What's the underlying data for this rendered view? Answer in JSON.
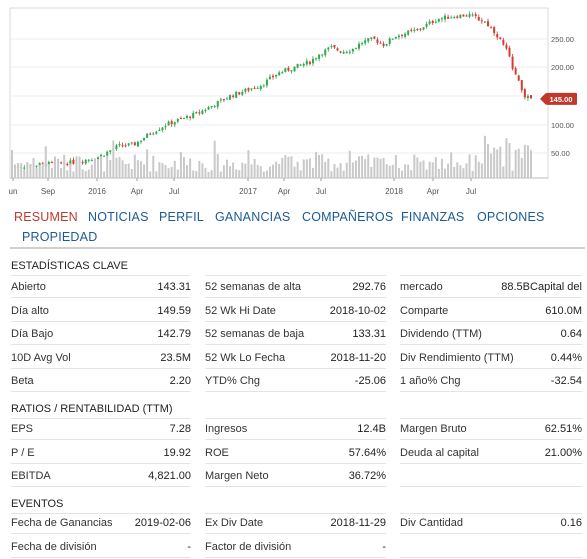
{
  "chart": {
    "x_ticks": [
      "un",
      "Sep",
      "2016",
      "Apr",
      "Jul",
      "2017",
      "Apr",
      "Jul",
      "2018",
      "Apr",
      "Jul"
    ],
    "y_ticks": [
      "250.00",
      "200.00",
      "150.00",
      "100.00",
      "50.00"
    ],
    "current_price": "145.00",
    "colors": {
      "up": "#2fa84f",
      "down": "#d63b2e",
      "volume": "#c9c9c9",
      "flag": "#c0392b"
    }
  },
  "tabs": [
    "RESUMEN",
    "NOTICIAS",
    "PERFIL",
    "GANANCIAS",
    "COMPAÑEROS",
    "FINANZAS",
    "OPCIONES",
    "PROPIEDAD"
  ],
  "key_stats": {
    "title": "ESTADÍSTICAS CLAVE",
    "rows": [
      [
        [
          "Abierto",
          "143.31"
        ],
        [
          "52 semanas de alta",
          "292.76"
        ],
        [
          "mercado",
          "88.5BCapital del"
        ]
      ],
      [
        [
          "Día alto",
          "149.59"
        ],
        [
          "52 Wk Hi Date",
          "2018-10-02"
        ],
        [
          "Comparte",
          "610.0M"
        ]
      ],
      [
        [
          "Día Bajo",
          "142.79"
        ],
        [
          "52 semanas de baja",
          "133.31"
        ],
        [
          "Dividendo (TTM)",
          "0.64"
        ]
      ],
      [
        [
          "10D Avg Vol",
          "23.5M"
        ],
        [
          "52 Wk Lo Fecha",
          "2018-11-20"
        ],
        [
          "Div Rendimiento (TTM)",
          "0.44%"
        ]
      ],
      [
        [
          "Beta",
          "2.20"
        ],
        [
          "YTD% Chg",
          "-25.06"
        ],
        [
          "1 año% Chg",
          "-32.54"
        ]
      ]
    ]
  },
  "ratios": {
    "title": "RATIOS / RENTABILIDAD (TTM)",
    "rows": [
      [
        [
          "EPS",
          "7.28"
        ],
        [
          "Ingresos",
          "12.4B"
        ],
        [
          "Margen Bruto",
          "62.51%"
        ]
      ],
      [
        [
          "P / E",
          "19.92"
        ],
        [
          "ROE",
          "57.64%"
        ],
        [
          "Deuda al capital",
          "21.00%"
        ]
      ],
      [
        [
          "EBITDA",
          "4,821.00"
        ],
        [
          "Margen Neto",
          "36.72%"
        ],
        [
          "",
          ""
        ]
      ]
    ]
  },
  "events": {
    "title": "EVENTOS",
    "rows": [
      [
        [
          "Fecha de Ganancias",
          "2019-02-06"
        ],
        [
          "Ex Div Date",
          "2018-11-29"
        ],
        [
          "Div Cantidad",
          "0.16"
        ]
      ],
      [
        [
          "Fecha de división",
          "-"
        ],
        [
          "Factor de división",
          "-"
        ],
        [
          "",
          ""
        ]
      ]
    ]
  }
}
